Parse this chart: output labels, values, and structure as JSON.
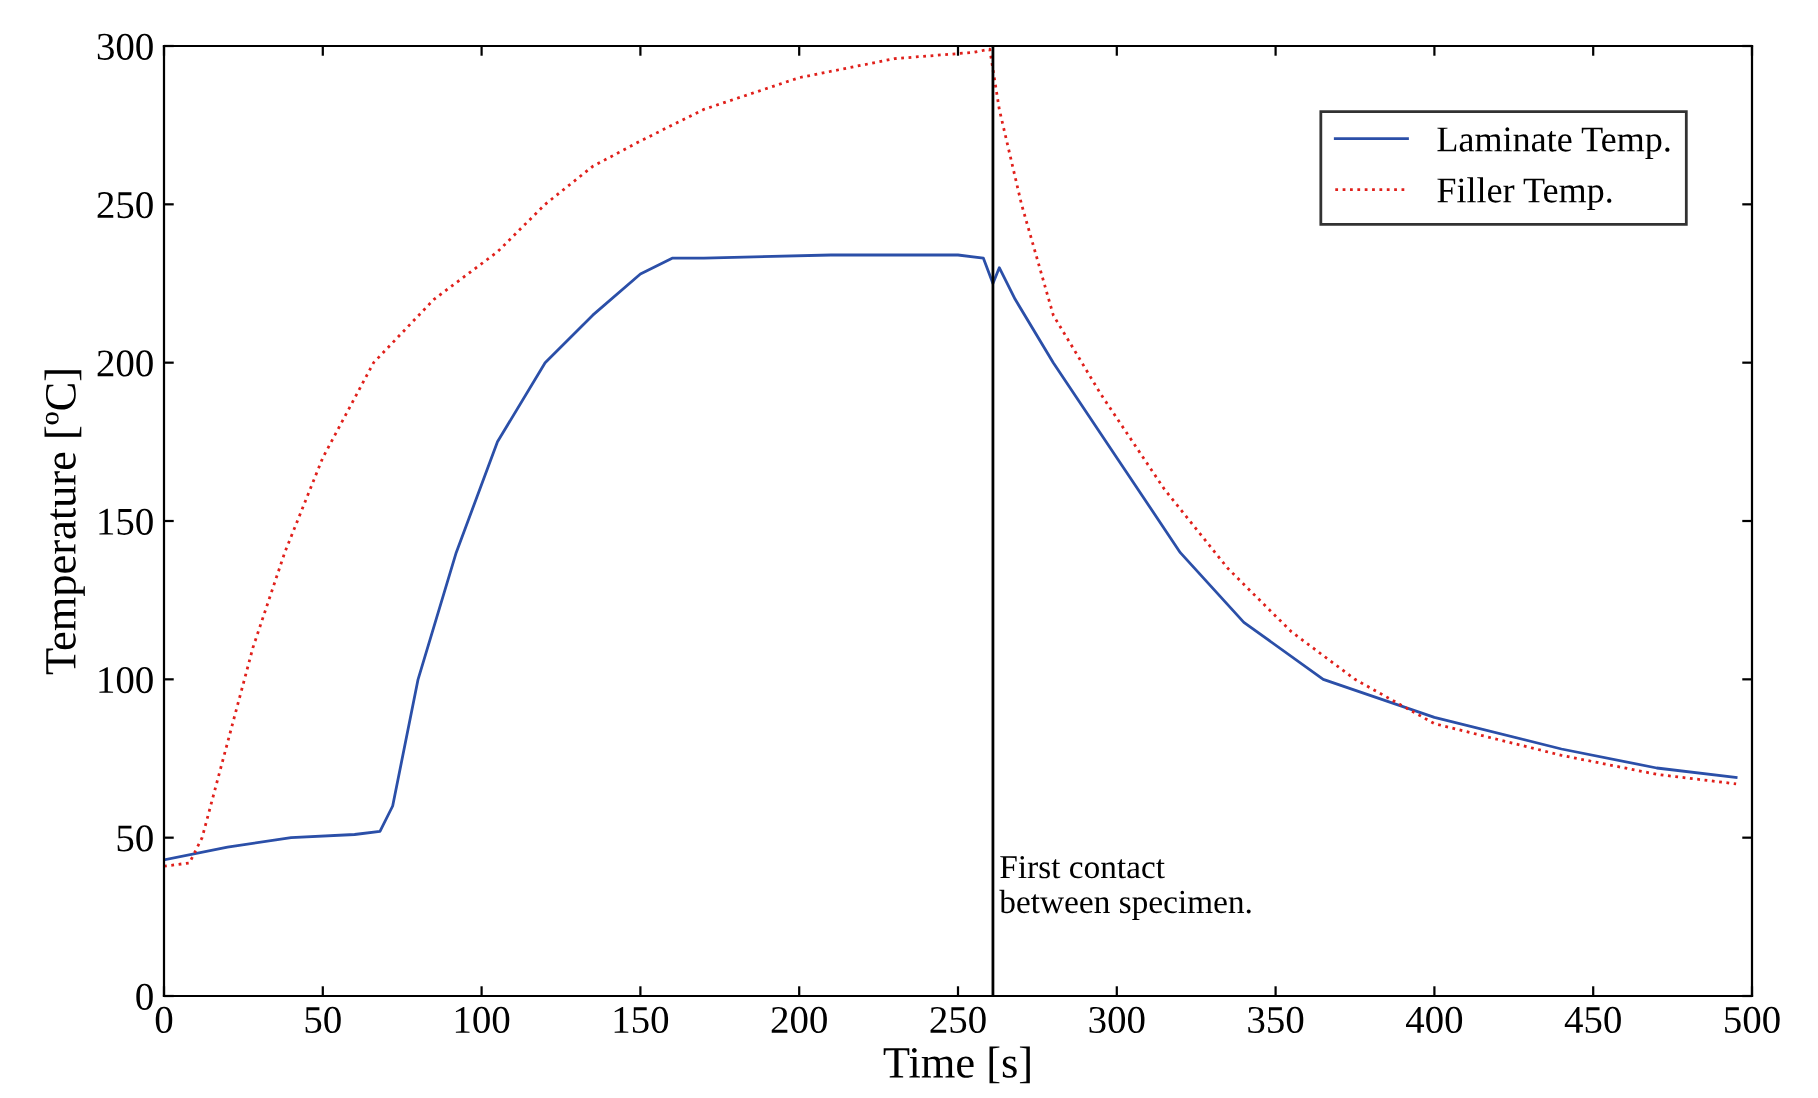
{
  "chart_data": {
    "type": "line",
    "xlabel": "Time [s]",
    "ylabel": "Temperature [ºC]",
    "xlim": [
      0,
      500
    ],
    "ylim": [
      0,
      300
    ],
    "xticks": [
      0,
      50,
      100,
      150,
      200,
      250,
      300,
      350,
      400,
      450,
      500
    ],
    "yticks": [
      0,
      50,
      100,
      150,
      200,
      250,
      300
    ],
    "grid": false,
    "legend": "top right",
    "ref_lines": [
      {
        "axis": "x",
        "value": 261,
        "label": "First contact\nbetween specimen.",
        "color": "#000000",
        "line_style": "solid"
      }
    ],
    "series": [
      {
        "name": "Laminate Temp.",
        "color": "#2b4fa8",
        "line_style": "solid",
        "x": [
          0,
          20,
          40,
          60,
          68,
          72,
          80,
          92,
          105,
          120,
          135,
          150,
          160,
          170,
          210,
          250,
          258,
          261,
          263,
          268,
          280,
          300,
          320,
          340,
          365,
          400,
          440,
          470,
          495
        ],
        "values": [
          43,
          47,
          50,
          51,
          52,
          60,
          100,
          140,
          175,
          200,
          215,
          228,
          233,
          233,
          234,
          234,
          233,
          225,
          230,
          220,
          200,
          170,
          140,
          118,
          100,
          88,
          78,
          72,
          69
        ]
      },
      {
        "name": "Filler Temp.",
        "color": "#e0201b",
        "line_style": "dotted",
        "x": [
          0,
          8,
          12,
          20,
          28,
          38,
          50,
          66,
          85,
          105,
          120,
          135,
          150,
          170,
          200,
          230,
          255,
          260,
          263,
          270,
          280,
          295,
          315,
          335,
          355,
          375,
          400,
          440,
          470,
          495
        ],
        "values": [
          41,
          42,
          50,
          80,
          110,
          140,
          170,
          200,
          220,
          235,
          250,
          262,
          270,
          280,
          290,
          296,
          298,
          299,
          280,
          250,
          215,
          190,
          160,
          135,
          115,
          100,
          86,
          76,
          70,
          67
        ]
      }
    ]
  }
}
